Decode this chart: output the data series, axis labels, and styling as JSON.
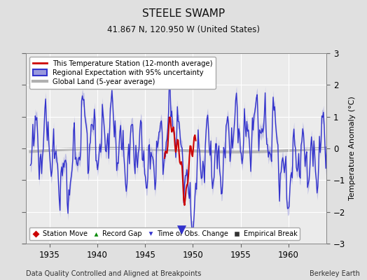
{
  "title": "STEELE SWAMP",
  "subtitle": "41.867 N, 120.950 W (United States)",
  "xlabel_bottom": "Data Quality Controlled and Aligned at Breakpoints",
  "xlabel_right": "Berkeley Earth",
  "ylabel": "Temperature Anomaly (°C)",
  "xlim": [
    1932.5,
    1964.0
  ],
  "ylim": [
    -3,
    3
  ],
  "xticks": [
    1935,
    1940,
    1945,
    1950,
    1955,
    1960
  ],
  "yticks": [
    -3,
    -2,
    -1,
    0,
    1,
    2,
    3
  ],
  "bg_color": "#e0e0e0",
  "plot_bg_color": "#ebebeb",
  "grid_color": "#ffffff",
  "regional_color": "#3333cc",
  "regional_fill_color": "#9999dd",
  "station_color": "#cc0000",
  "global_color": "#b0b0b0",
  "obs_change_year": 1948.8,
  "obs_change_value": -2.55
}
